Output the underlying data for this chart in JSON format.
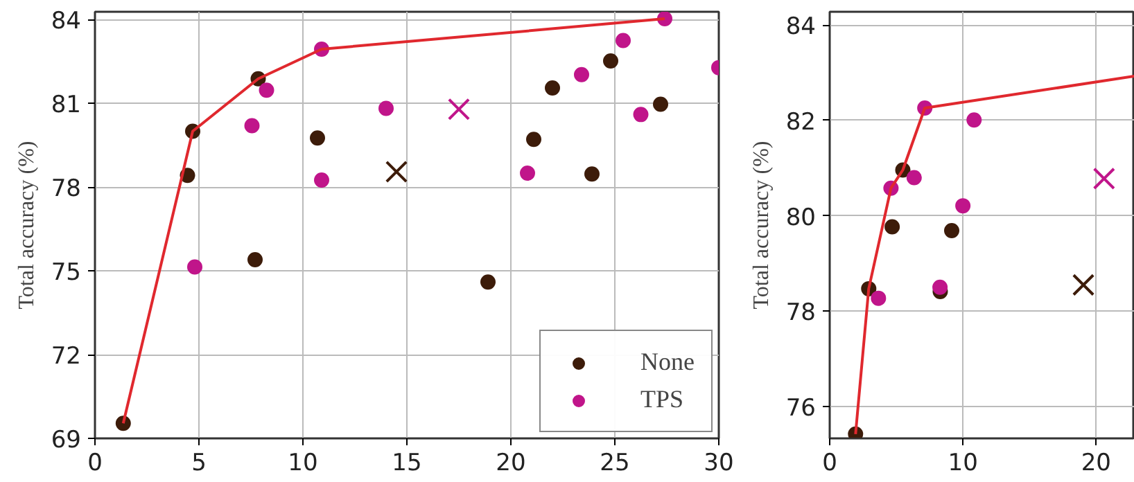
{
  "chart_data": [
    {
      "type": "scatter",
      "ylabel": "Total accuracy (%)",
      "xlim": [
        0,
        30
      ],
      "ylim": [
        69,
        84.28
      ],
      "xticks": [
        0,
        5,
        10,
        15,
        20,
        25,
        30
      ],
      "yticks": [
        69,
        72,
        75,
        78,
        81,
        84
      ],
      "grid": true,
      "legend": "bottom right",
      "series": [
        {
          "name": "None",
          "color": "#3d1c0a",
          "marker": "circle",
          "x": [
            1.36,
            4.45,
            4.7,
            7.7,
            7.85,
            10.7,
            18.9,
            21.1,
            22.0,
            23.9,
            24.8,
            27.2
          ],
          "values": [
            69.54,
            78.42,
            80.0,
            75.4,
            81.88,
            79.76,
            74.6,
            79.71,
            81.55,
            78.47,
            82.52,
            80.97
          ]
        },
        {
          "name": "TPS",
          "color": "#c0158a",
          "marker": "circle",
          "x": [
            4.8,
            7.55,
            8.25,
            10.9,
            10.9,
            14.0,
            20.8,
            23.4,
            25.4,
            26.25,
            27.4,
            30.0
          ],
          "values": [
            75.14,
            80.2,
            81.47,
            78.25,
            82.94,
            80.82,
            78.5,
            82.03,
            83.25,
            80.6,
            84.03,
            82.28
          ]
        },
        {
          "color": "#3d1c0a",
          "marker": "cross",
          "x": [
            14.5
          ],
          "values": [
            78.55
          ]
        },
        {
          "color": "#c0158a",
          "marker": "cross",
          "x": [
            17.5
          ],
          "values": [
            80.79
          ]
        },
        {
          "type": "line",
          "color": "#e0282e",
          "marker": "none",
          "x": [
            1.36,
            4.7,
            7.85,
            10.9,
            27.4
          ],
          "values": [
            69.54,
            80.0,
            81.88,
            82.94,
            84.03
          ]
        }
      ]
    },
    {
      "type": "scatter",
      "ylabel": "Total accuracy (%)",
      "xlim": [
        0,
        22.9
      ],
      "ylim": [
        75.33,
        84.28
      ],
      "xticks": [
        0,
        10,
        20
      ],
      "yticks": [
        76,
        78,
        80,
        82,
        84
      ],
      "grid": true,
      "series": [
        {
          "color": "#3d1c0a",
          "marker": "circle",
          "x": [
            1.94,
            2.93,
            4.69,
            5.49,
            8.3,
            9.16
          ],
          "values": [
            75.42,
            78.47,
            79.77,
            80.96,
            78.41,
            79.69
          ]
        },
        {
          "color": "#c0158a",
          "marker": "circle",
          "x": [
            3.66,
            4.6,
            6.34,
            7.14,
            8.28,
            10.0,
            10.84
          ],
          "values": [
            78.27,
            80.58,
            80.8,
            82.26,
            78.5,
            80.21,
            82.01
          ]
        },
        {
          "color": "#3d1c0a",
          "marker": "cross",
          "x": [
            19.05
          ],
          "values": [
            78.55
          ]
        },
        {
          "color": "#c0158a",
          "marker": "cross",
          "x": [
            20.6
          ],
          "values": [
            80.78
          ]
        },
        {
          "type": "line",
          "color": "#e0282e",
          "marker": "none",
          "x": [
            1.94,
            2.93,
            4.6,
            5.49,
            7.14,
            22.9
          ],
          "values": [
            75.42,
            78.47,
            80.58,
            80.96,
            82.26,
            82.93
          ]
        }
      ]
    }
  ]
}
